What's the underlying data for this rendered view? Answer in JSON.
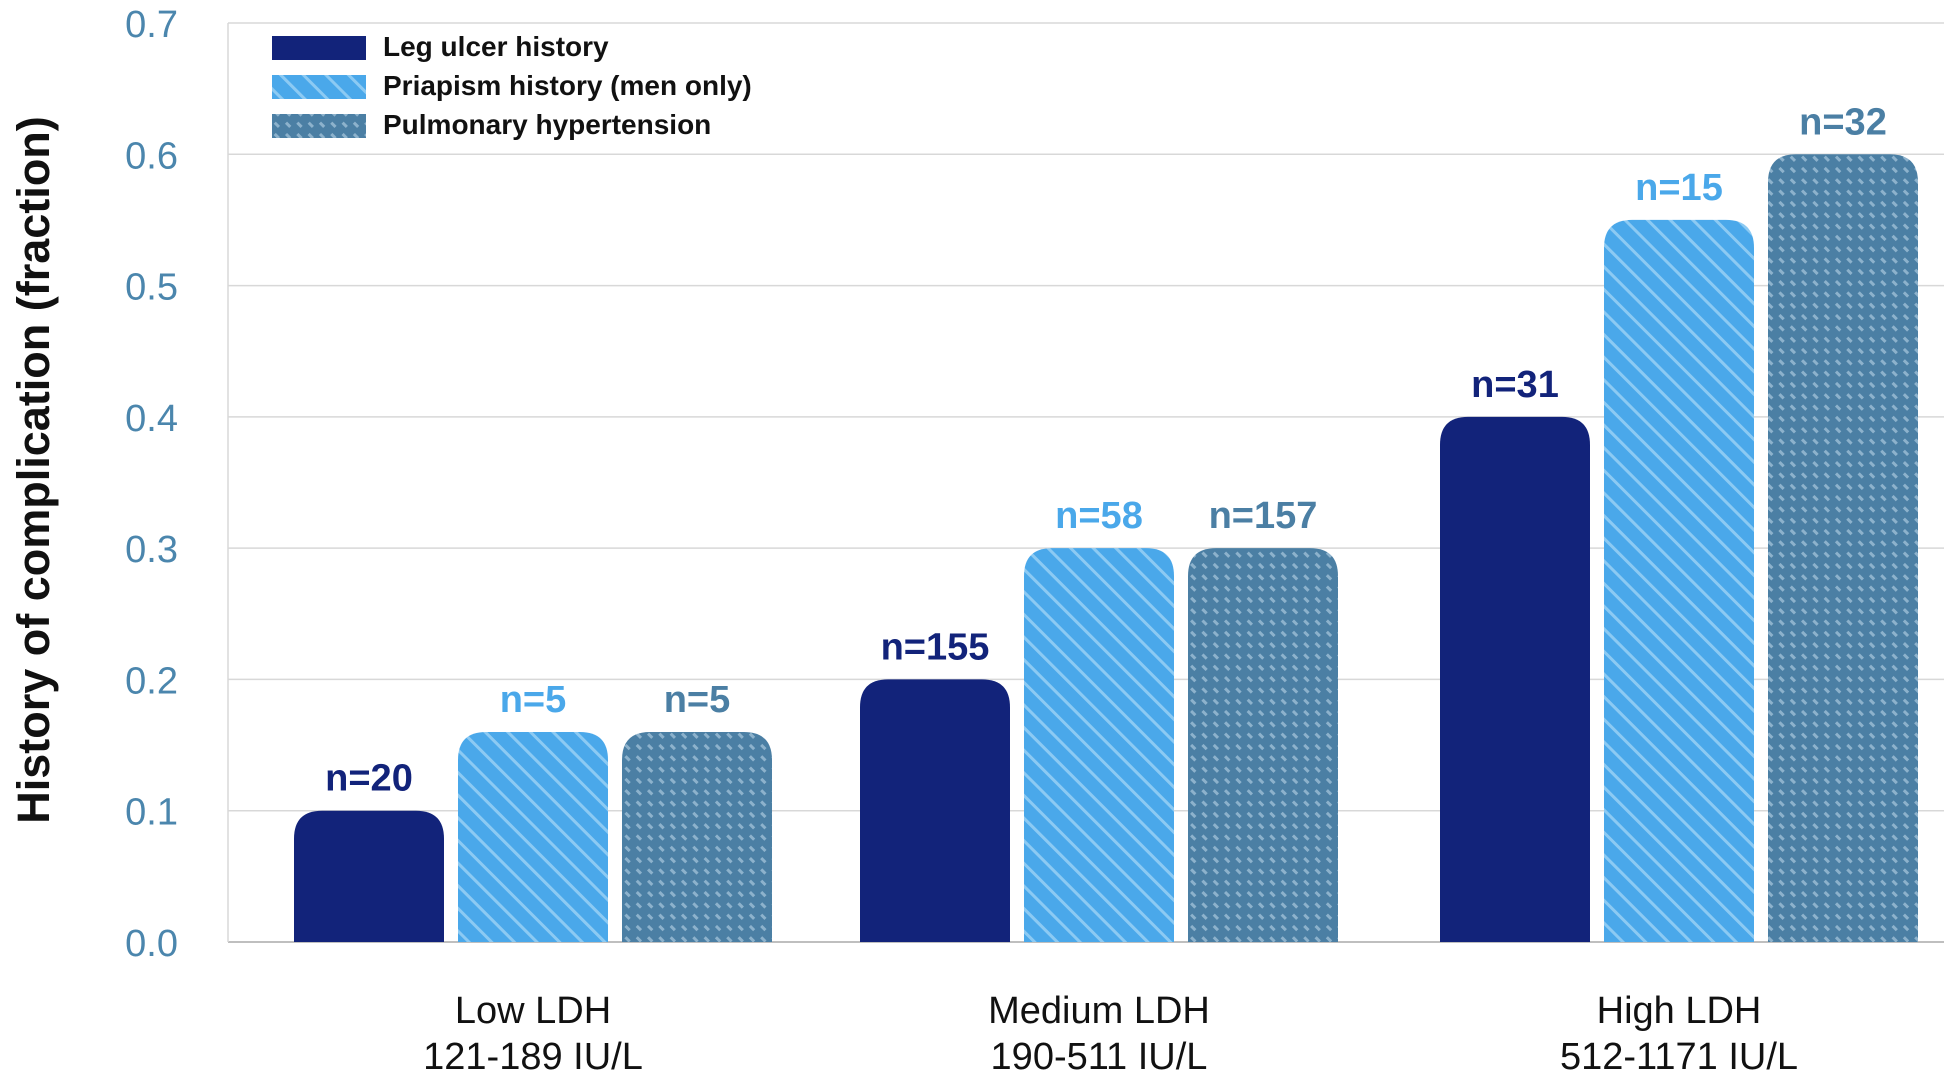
{
  "chart_data": {
    "type": "bar",
    "ylabel": "History of complication (fraction)",
    "xlabel": "",
    "ylim": [
      0,
      0.7
    ],
    "yticks": [
      "0.0",
      "0.1",
      "0.2",
      "0.3",
      "0.4",
      "0.5",
      "0.6",
      "0.7"
    ],
    "grid": true,
    "legend_position": "top-left",
    "categories": [
      {
        "line1": "Low LDH",
        "line2": "121-189 IU/L"
      },
      {
        "line1": "Medium LDH",
        "line2": "190-511 IU/L"
      },
      {
        "line1": "High LDH",
        "line2": "512-1171 IU/L"
      }
    ],
    "series": [
      {
        "name": "Leg ulcer history",
        "color": "#12237a",
        "label_color": "#12237a",
        "pattern": "solid",
        "values": [
          0.1,
          0.2,
          0.4
        ],
        "labels": [
          "n=20",
          "n=155",
          "n=31"
        ]
      },
      {
        "name": "Priapism history (men only)",
        "color": "#4aa8ea",
        "label_color": "#4aa8ea",
        "pattern": "diagonal-stripes",
        "values": [
          0.16,
          0.3,
          0.55
        ],
        "labels": [
          "n=5",
          "n=58",
          "n=15"
        ]
      },
      {
        "name": "Pulmonary hypertension",
        "color": "#4b7fa4",
        "label_color": "#4b7fa4",
        "pattern": "dashed-dots",
        "values": [
          0.16,
          0.3,
          0.6
        ],
        "labels": [
          "n=5",
          "n=157",
          "n=32"
        ]
      }
    ]
  },
  "colors": {
    "axis_tick_text": "#4b86ad",
    "gridline": "#d8d8d8",
    "axis_title": "#111111",
    "category_text": "#111111"
  }
}
